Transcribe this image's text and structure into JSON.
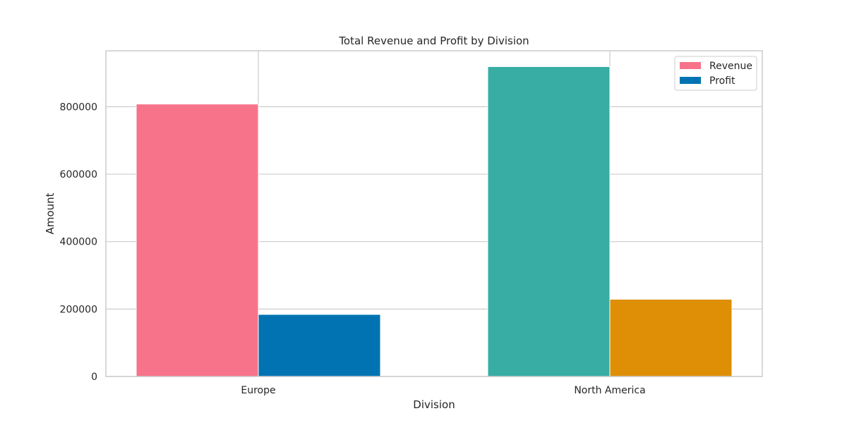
{
  "chart_data": {
    "type": "bar",
    "title": "Total Revenue and Profit by Division",
    "xlabel": "Division",
    "ylabel": "Amount",
    "categories": [
      "Europe",
      "North America"
    ],
    "series": [
      {
        "name": "Revenue",
        "values": [
          808000,
          919000
        ],
        "colors": [
          "#f7738a",
          "#37ada4"
        ]
      },
      {
        "name": "Profit",
        "values": [
          184000,
          229000
        ],
        "colors": [
          "#0173b2",
          "#de8f05"
        ]
      }
    ],
    "ylim": [
      0,
      966000
    ],
    "yticks": [
      0,
      200000,
      400000,
      600000,
      800000
    ],
    "ytick_labels": [
      "0",
      "200000",
      "400000",
      "600000",
      "800000"
    ],
    "grid": true,
    "legend": {
      "position": "top-right",
      "entries": [
        {
          "label": "Revenue",
          "color": "#f7738a"
        },
        {
          "label": "Profit",
          "color": "#0173b2"
        }
      ]
    }
  }
}
